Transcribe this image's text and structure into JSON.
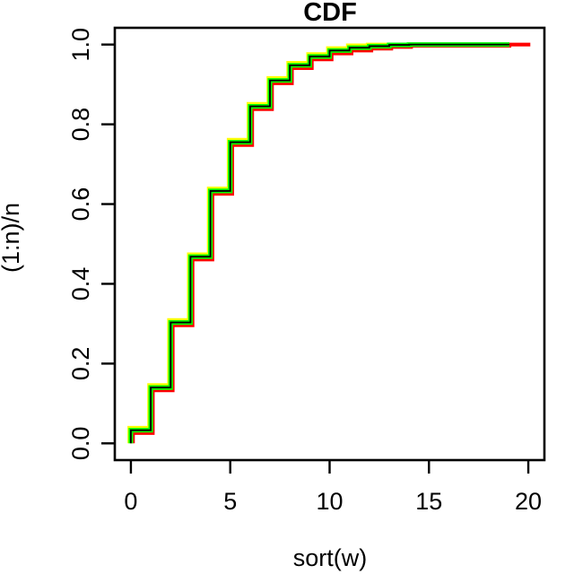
{
  "page": {
    "background_color": "#ffffff",
    "text_color": "#000000"
  },
  "chart_data": {
    "type": "line",
    "subtype": "ecdf-step",
    "title": "CDF",
    "xlabel": "sort(w)",
    "ylabel": "(1:n)/n",
    "xlim": [
      -0.81,
      20.81
    ],
    "ylim": [
      -0.042,
      1.042
    ],
    "grid": false,
    "legend_position": "none",
    "x_ticks": [
      {
        "value": 0,
        "label": "0"
      },
      {
        "value": 5,
        "label": "5"
      },
      {
        "value": 10,
        "label": "10"
      },
      {
        "value": 15,
        "label": "15"
      },
      {
        "value": 20,
        "label": "20"
      }
    ],
    "y_ticks": [
      {
        "value": 0.0,
        "label": "0.0"
      },
      {
        "value": 0.2,
        "label": "0.2"
      },
      {
        "value": 0.4,
        "label": "0.4"
      },
      {
        "value": 0.6,
        "label": "0.6"
      },
      {
        "value": 0.8,
        "label": "0.8"
      },
      {
        "value": 1.0,
        "label": "1.0"
      }
    ],
    "series": [
      {
        "name": "red",
        "color": "#ff0000",
        "width": 4.2,
        "points": [
          [
            0.1,
            0
          ],
          [
            0.1,
            0.026
          ],
          [
            1.1,
            0.133
          ],
          [
            2.1,
            0.296
          ],
          [
            3.1,
            0.461
          ],
          [
            4.1,
            0.626
          ],
          [
            5.1,
            0.748
          ],
          [
            6.1,
            0.838
          ],
          [
            7.1,
            0.903
          ],
          [
            8.1,
            0.941
          ],
          [
            9.1,
            0.963
          ],
          [
            10.1,
            0.978
          ],
          [
            11.1,
            0.985
          ],
          [
            12.1,
            0.99
          ],
          [
            13.1,
            0.994
          ],
          [
            14.1,
            0.997
          ],
          [
            19.05,
            1.0
          ],
          [
            20.1,
            1.0
          ]
        ]
      },
      {
        "name": "yellow",
        "color": "#ffff00",
        "width": 4.2,
        "points": [
          [
            -0.08,
            0
          ],
          [
            -0.08,
            0.039
          ],
          [
            0.92,
            0.146
          ],
          [
            1.92,
            0.309
          ],
          [
            2.92,
            0.474
          ],
          [
            3.92,
            0.639
          ],
          [
            4.92,
            0.761
          ],
          [
            5.92,
            0.851
          ],
          [
            6.92,
            0.916
          ],
          [
            7.92,
            0.954
          ],
          [
            8.92,
            0.976
          ],
          [
            9.92,
            0.991
          ],
          [
            10.92,
            0.998
          ],
          [
            11.92,
            1.0
          ],
          [
            19.0,
            1.0
          ]
        ]
      },
      {
        "name": "green",
        "color": "#00ff00",
        "width": 5.2,
        "points": [
          [
            0,
            0
          ],
          [
            0,
            0.033
          ],
          [
            1,
            0.14
          ],
          [
            2,
            0.303
          ],
          [
            3,
            0.468
          ],
          [
            4,
            0.633
          ],
          [
            5,
            0.755
          ],
          [
            6,
            0.845
          ],
          [
            7,
            0.91
          ],
          [
            8,
            0.948
          ],
          [
            9,
            0.97
          ],
          [
            10,
            0.985
          ],
          [
            11,
            0.992
          ],
          [
            12,
            0.996
          ],
          [
            13,
            0.999
          ],
          [
            14,
            1.0
          ],
          [
            19.05,
            1.0
          ]
        ]
      },
      {
        "name": "black-core",
        "color": "#000000",
        "width": 1.9,
        "points": [
          [
            0,
            0
          ],
          [
            0,
            0.033
          ],
          [
            1,
            0.14
          ],
          [
            2,
            0.303
          ],
          [
            3,
            0.468
          ],
          [
            4,
            0.633
          ],
          [
            5,
            0.755
          ],
          [
            6,
            0.845
          ],
          [
            7,
            0.91
          ],
          [
            8,
            0.948
          ],
          [
            9,
            0.97
          ],
          [
            10,
            0.985
          ],
          [
            11,
            0.992
          ],
          [
            12,
            0.996
          ],
          [
            13,
            0.999
          ],
          [
            14,
            1.0
          ],
          [
            19.05,
            1.0
          ]
        ]
      }
    ]
  }
}
